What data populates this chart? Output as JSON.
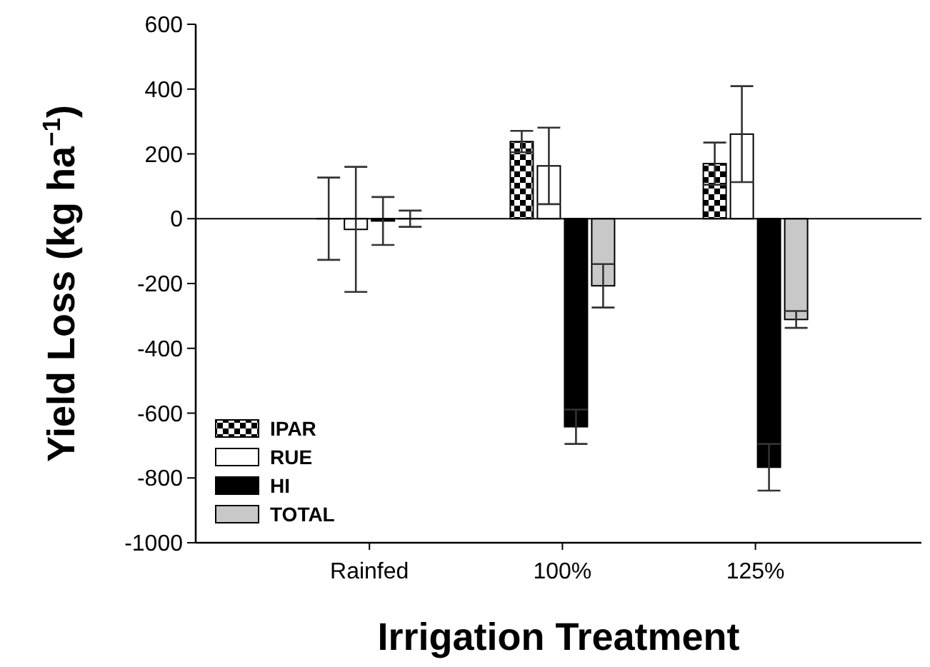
{
  "chart_data": {
    "type": "bar",
    "xlabel": "Irrigation Treatment",
    "ylabel": "Yield Loss (kg ha$^{−1}$)",
    "categories": [
      "Rainfed",
      "100%",
      "125%"
    ],
    "series": [
      {
        "name": "IPAR",
        "color": "#000000",
        "values": [
          0,
          238,
          170
        ],
        "errors": [
          127,
          33,
          65
        ]
      },
      {
        "name": "RUE",
        "color": "#ffffff",
        "values": [
          -33,
          163,
          261
        ],
        "errors": [
          193,
          118,
          148
        ]
      },
      {
        "name": "HI",
        "color": "#000000",
        "values": [
          -7,
          -642,
          -767
        ],
        "errors": [
          74,
          53,
          72
        ]
      },
      {
        "name": "TOTAL",
        "color": "#c8c8c8",
        "values": [
          0,
          -207,
          -311
        ],
        "errors": [
          25,
          67,
          26
        ]
      }
    ],
    "ylim": [
      -1000,
      600
    ],
    "yticks": [
      -1000,
      -800,
      -600,
      -400,
      -200,
      0,
      200,
      400,
      600
    ],
    "ref_lines": [
      {
        "axis": "y",
        "value": 0
      }
    ],
    "legend": "bottom left",
    "grid": false
  }
}
